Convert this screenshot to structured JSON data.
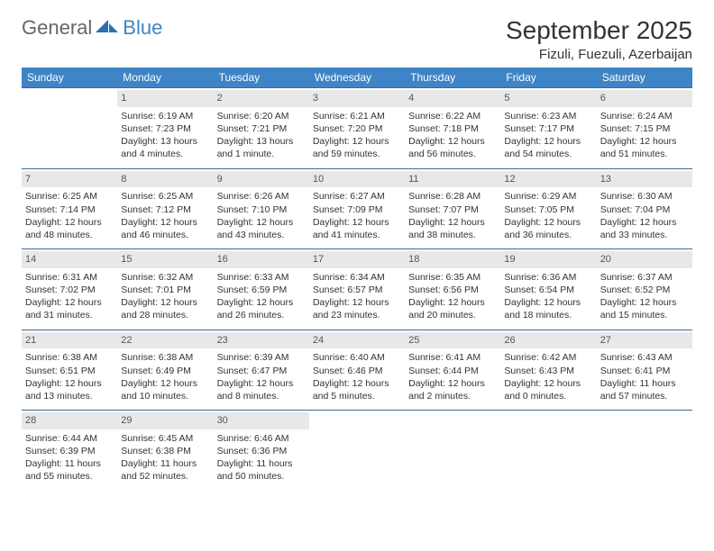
{
  "brand": {
    "part1": "General",
    "part2": "Blue"
  },
  "title": "September 2025",
  "location": "Fizuli, Fuezuli, Azerbaijan",
  "colors": {
    "header_bg": "#3e84c6",
    "header_text": "#ffffff",
    "row_border": "#3e6a94",
    "daynum_bg": "#e8e8e8",
    "text": "#333333",
    "background": "#ffffff"
  },
  "weekdays": [
    "Sunday",
    "Monday",
    "Tuesday",
    "Wednesday",
    "Thursday",
    "Friday",
    "Saturday"
  ],
  "weeks": [
    [
      {
        "blank": true
      },
      {
        "day": "1",
        "sunrise": "Sunrise: 6:19 AM",
        "sunset": "Sunset: 7:23 PM",
        "daylight": "Daylight: 13 hours and 4 minutes."
      },
      {
        "day": "2",
        "sunrise": "Sunrise: 6:20 AM",
        "sunset": "Sunset: 7:21 PM",
        "daylight": "Daylight: 13 hours and 1 minute."
      },
      {
        "day": "3",
        "sunrise": "Sunrise: 6:21 AM",
        "sunset": "Sunset: 7:20 PM",
        "daylight": "Daylight: 12 hours and 59 minutes."
      },
      {
        "day": "4",
        "sunrise": "Sunrise: 6:22 AM",
        "sunset": "Sunset: 7:18 PM",
        "daylight": "Daylight: 12 hours and 56 minutes."
      },
      {
        "day": "5",
        "sunrise": "Sunrise: 6:23 AM",
        "sunset": "Sunset: 7:17 PM",
        "daylight": "Daylight: 12 hours and 54 minutes."
      },
      {
        "day": "6",
        "sunrise": "Sunrise: 6:24 AM",
        "sunset": "Sunset: 7:15 PM",
        "daylight": "Daylight: 12 hours and 51 minutes."
      }
    ],
    [
      {
        "day": "7",
        "sunrise": "Sunrise: 6:25 AM",
        "sunset": "Sunset: 7:14 PM",
        "daylight": "Daylight: 12 hours and 48 minutes."
      },
      {
        "day": "8",
        "sunrise": "Sunrise: 6:25 AM",
        "sunset": "Sunset: 7:12 PM",
        "daylight": "Daylight: 12 hours and 46 minutes."
      },
      {
        "day": "9",
        "sunrise": "Sunrise: 6:26 AM",
        "sunset": "Sunset: 7:10 PM",
        "daylight": "Daylight: 12 hours and 43 minutes."
      },
      {
        "day": "10",
        "sunrise": "Sunrise: 6:27 AM",
        "sunset": "Sunset: 7:09 PM",
        "daylight": "Daylight: 12 hours and 41 minutes."
      },
      {
        "day": "11",
        "sunrise": "Sunrise: 6:28 AM",
        "sunset": "Sunset: 7:07 PM",
        "daylight": "Daylight: 12 hours and 38 minutes."
      },
      {
        "day": "12",
        "sunrise": "Sunrise: 6:29 AM",
        "sunset": "Sunset: 7:05 PM",
        "daylight": "Daylight: 12 hours and 36 minutes."
      },
      {
        "day": "13",
        "sunrise": "Sunrise: 6:30 AM",
        "sunset": "Sunset: 7:04 PM",
        "daylight": "Daylight: 12 hours and 33 minutes."
      }
    ],
    [
      {
        "day": "14",
        "sunrise": "Sunrise: 6:31 AM",
        "sunset": "Sunset: 7:02 PM",
        "daylight": "Daylight: 12 hours and 31 minutes."
      },
      {
        "day": "15",
        "sunrise": "Sunrise: 6:32 AM",
        "sunset": "Sunset: 7:01 PM",
        "daylight": "Daylight: 12 hours and 28 minutes."
      },
      {
        "day": "16",
        "sunrise": "Sunrise: 6:33 AM",
        "sunset": "Sunset: 6:59 PM",
        "daylight": "Daylight: 12 hours and 26 minutes."
      },
      {
        "day": "17",
        "sunrise": "Sunrise: 6:34 AM",
        "sunset": "Sunset: 6:57 PM",
        "daylight": "Daylight: 12 hours and 23 minutes."
      },
      {
        "day": "18",
        "sunrise": "Sunrise: 6:35 AM",
        "sunset": "Sunset: 6:56 PM",
        "daylight": "Daylight: 12 hours and 20 minutes."
      },
      {
        "day": "19",
        "sunrise": "Sunrise: 6:36 AM",
        "sunset": "Sunset: 6:54 PM",
        "daylight": "Daylight: 12 hours and 18 minutes."
      },
      {
        "day": "20",
        "sunrise": "Sunrise: 6:37 AM",
        "sunset": "Sunset: 6:52 PM",
        "daylight": "Daylight: 12 hours and 15 minutes."
      }
    ],
    [
      {
        "day": "21",
        "sunrise": "Sunrise: 6:38 AM",
        "sunset": "Sunset: 6:51 PM",
        "daylight": "Daylight: 12 hours and 13 minutes."
      },
      {
        "day": "22",
        "sunrise": "Sunrise: 6:38 AM",
        "sunset": "Sunset: 6:49 PM",
        "daylight": "Daylight: 12 hours and 10 minutes."
      },
      {
        "day": "23",
        "sunrise": "Sunrise: 6:39 AM",
        "sunset": "Sunset: 6:47 PM",
        "daylight": "Daylight: 12 hours and 8 minutes."
      },
      {
        "day": "24",
        "sunrise": "Sunrise: 6:40 AM",
        "sunset": "Sunset: 6:46 PM",
        "daylight": "Daylight: 12 hours and 5 minutes."
      },
      {
        "day": "25",
        "sunrise": "Sunrise: 6:41 AM",
        "sunset": "Sunset: 6:44 PM",
        "daylight": "Daylight: 12 hours and 2 minutes."
      },
      {
        "day": "26",
        "sunrise": "Sunrise: 6:42 AM",
        "sunset": "Sunset: 6:43 PM",
        "daylight": "Daylight: 12 hours and 0 minutes."
      },
      {
        "day": "27",
        "sunrise": "Sunrise: 6:43 AM",
        "sunset": "Sunset: 6:41 PM",
        "daylight": "Daylight: 11 hours and 57 minutes."
      }
    ],
    [
      {
        "day": "28",
        "sunrise": "Sunrise: 6:44 AM",
        "sunset": "Sunset: 6:39 PM",
        "daylight": "Daylight: 11 hours and 55 minutes."
      },
      {
        "day": "29",
        "sunrise": "Sunrise: 6:45 AM",
        "sunset": "Sunset: 6:38 PM",
        "daylight": "Daylight: 11 hours and 52 minutes."
      },
      {
        "day": "30",
        "sunrise": "Sunrise: 6:46 AM",
        "sunset": "Sunset: 6:36 PM",
        "daylight": "Daylight: 11 hours and 50 minutes."
      },
      {
        "blank": true
      },
      {
        "blank": true
      },
      {
        "blank": true
      },
      {
        "blank": true
      }
    ]
  ]
}
